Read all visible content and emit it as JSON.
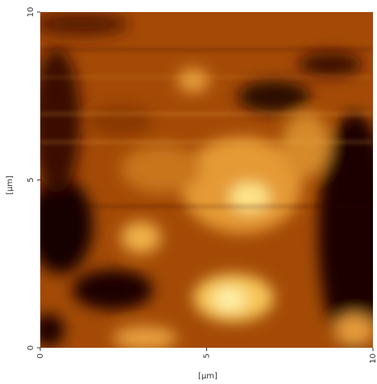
{
  "chart_data": {
    "type": "image",
    "xlabel": "[μm]",
    "ylabel": "[μm]",
    "xlim": [
      0,
      10
    ],
    "xticks": [
      0,
      5,
      10
    ],
    "ylim": [
      0,
      10
    ],
    "yticks": [
      0,
      5,
      10
    ]
  }
}
